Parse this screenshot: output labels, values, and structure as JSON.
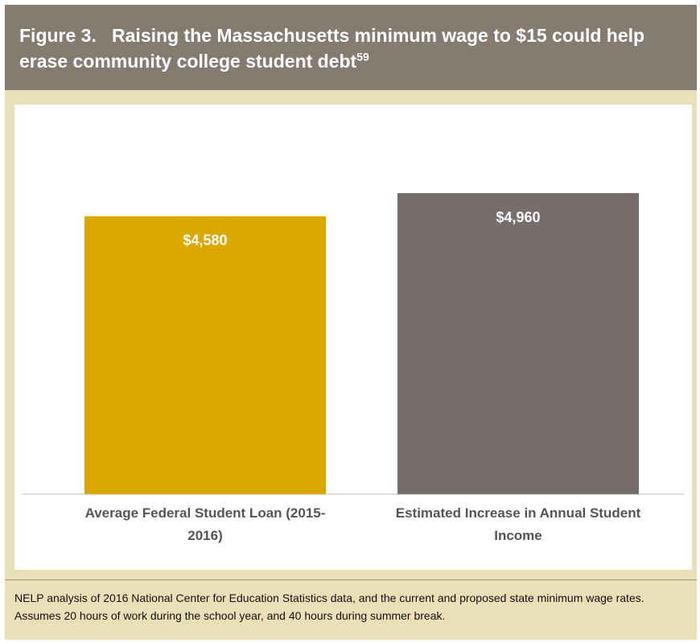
{
  "chart_data": {
    "type": "bar",
    "title": "Figure 3.   Raising the Massachusetts minimum wage to $15 could help erase community college student debt",
    "title_footnote": "59",
    "categories": [
      "Average Federal Student Loan (2015-2016)",
      "Estimated Increase in Annual Student Income"
    ],
    "values": [
      4580,
      4960
    ],
    "value_labels": [
      "$4,580",
      "$4,960"
    ],
    "colors": [
      "#dca800",
      "#756e6d"
    ],
    "note": "NELP analysis of 2016 National Center for Education Statistics data, and the current and proposed state minimum wage rates. Assumes 20 hours of work during the school year, and 40 hours during summer break."
  }
}
